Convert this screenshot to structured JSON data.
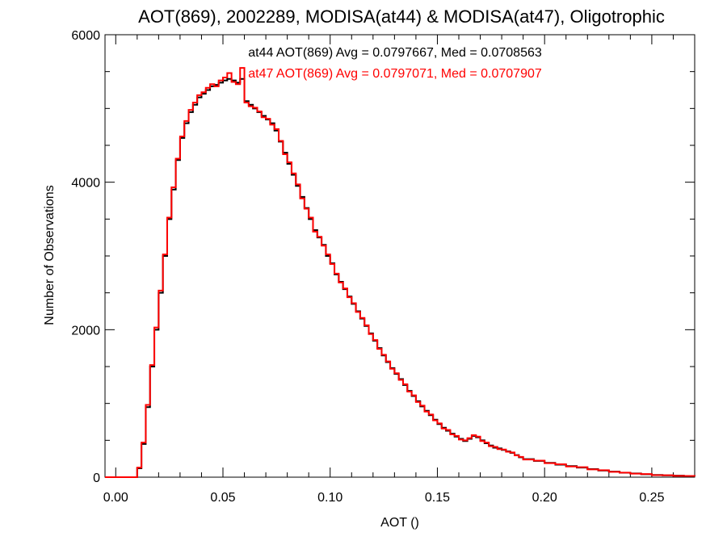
{
  "chart_data": {
    "type": "line",
    "title": "AOT(869), 2002289, MODISA(at44) & MODISA(at47), Oligotrophic",
    "xlabel": "AOT ()",
    "ylabel": "Number of Observations",
    "xlim": [
      -0.005,
      0.27
    ],
    "ylim": [
      0,
      6000
    ],
    "x_ticks": [
      0.0,
      0.05,
      0.1,
      0.15,
      0.2,
      0.25
    ],
    "x_tick_labels": [
      "0.00",
      "0.05",
      "0.10",
      "0.15",
      "0.20",
      "0.25"
    ],
    "y_ticks": [
      0,
      2000,
      4000,
      6000
    ],
    "y_tick_labels": [
      "0",
      "2000",
      "4000",
      "6000"
    ],
    "grid": false,
    "step": "histogram",
    "annotations": [
      {
        "text": "at44 AOT(869) Avg = 0.0797667, Med = 0.0708563",
        "color": "#000000"
      },
      {
        "text": "at47 AOT(869) Avg = 0.0797071, Med = 0.0707907",
        "color": "#ff0000"
      }
    ],
    "series": [
      {
        "color": "#000000",
        "x": [
          -0.005,
          0.0,
          0.005,
          0.008,
          0.01,
          0.012,
          0.014,
          0.016,
          0.018,
          0.02,
          0.022,
          0.024,
          0.026,
          0.028,
          0.03,
          0.032,
          0.034,
          0.036,
          0.038,
          0.04,
          0.042,
          0.044,
          0.046,
          0.048,
          0.05,
          0.052,
          0.054,
          0.056,
          0.058,
          0.06,
          0.062,
          0.064,
          0.066,
          0.068,
          0.07,
          0.072,
          0.074,
          0.076,
          0.078,
          0.08,
          0.082,
          0.084,
          0.086,
          0.088,
          0.09,
          0.092,
          0.094,
          0.096,
          0.098,
          0.1,
          0.102,
          0.104,
          0.106,
          0.108,
          0.11,
          0.112,
          0.114,
          0.116,
          0.118,
          0.12,
          0.122,
          0.124,
          0.126,
          0.128,
          0.13,
          0.132,
          0.134,
          0.136,
          0.138,
          0.14,
          0.142,
          0.144,
          0.146,
          0.148,
          0.15,
          0.152,
          0.154,
          0.156,
          0.158,
          0.16,
          0.162,
          0.164,
          0.166,
          0.168,
          0.17,
          0.172,
          0.174,
          0.176,
          0.178,
          0.18,
          0.182,
          0.184,
          0.186,
          0.188,
          0.19,
          0.195,
          0.2,
          0.205,
          0.21,
          0.215,
          0.22,
          0.225,
          0.23,
          0.235,
          0.24,
          0.245,
          0.25,
          0.255,
          0.26,
          0.265,
          0.27
        ],
        "values": [
          0,
          0,
          0,
          0,
          120,
          450,
          950,
          1500,
          2000,
          2500,
          3000,
          3500,
          3900,
          4300,
          4600,
          4800,
          4950,
          5050,
          5150,
          5200,
          5250,
          5300,
          5320,
          5350,
          5380,
          5400,
          5380,
          5350,
          5400,
          5100,
          5050,
          5000,
          4950,
          4900,
          4850,
          4800,
          4700,
          4550,
          4400,
          4250,
          4100,
          3950,
          3800,
          3650,
          3500,
          3350,
          3250,
          3150,
          3000,
          2900,
          2750,
          2650,
          2550,
          2450,
          2350,
          2250,
          2150,
          2050,
          1950,
          1850,
          1750,
          1650,
          1560,
          1480,
          1400,
          1330,
          1250,
          1170,
          1100,
          1030,
          960,
          900,
          840,
          780,
          720,
          670,
          630,
          590,
          550,
          520,
          490,
          520,
          560,
          540,
          500,
          460,
          430,
          400,
          390,
          370,
          350,
          330,
          300,
          270,
          245,
          220,
          195,
          170,
          150,
          130,
          110,
          90,
          75,
          60,
          50,
          40,
          30,
          25,
          20,
          15,
          12
        ]
      },
      {
        "color": "#ff0000",
        "x": [
          -0.005,
          0.0,
          0.005,
          0.008,
          0.01,
          0.012,
          0.014,
          0.016,
          0.018,
          0.02,
          0.022,
          0.024,
          0.026,
          0.028,
          0.03,
          0.032,
          0.034,
          0.036,
          0.038,
          0.04,
          0.042,
          0.044,
          0.046,
          0.048,
          0.05,
          0.052,
          0.054,
          0.056,
          0.058,
          0.06,
          0.062,
          0.064,
          0.066,
          0.068,
          0.07,
          0.072,
          0.074,
          0.076,
          0.078,
          0.08,
          0.082,
          0.084,
          0.086,
          0.088,
          0.09,
          0.092,
          0.094,
          0.096,
          0.098,
          0.1,
          0.102,
          0.104,
          0.106,
          0.108,
          0.11,
          0.112,
          0.114,
          0.116,
          0.118,
          0.12,
          0.122,
          0.124,
          0.126,
          0.128,
          0.13,
          0.132,
          0.134,
          0.136,
          0.138,
          0.14,
          0.142,
          0.144,
          0.146,
          0.148,
          0.15,
          0.152,
          0.154,
          0.156,
          0.158,
          0.16,
          0.162,
          0.164,
          0.166,
          0.168,
          0.17,
          0.172,
          0.174,
          0.176,
          0.178,
          0.18,
          0.182,
          0.184,
          0.186,
          0.188,
          0.19,
          0.195,
          0.2,
          0.205,
          0.21,
          0.215,
          0.22,
          0.225,
          0.23,
          0.235,
          0.24,
          0.245,
          0.25,
          0.255,
          0.26,
          0.265,
          0.27
        ],
        "values": [
          0,
          0,
          0,
          0,
          130,
          470,
          980,
          1520,
          2030,
          2530,
          3020,
          3520,
          3930,
          4320,
          4620,
          4830,
          4980,
          5080,
          5180,
          5220,
          5280,
          5330,
          5300,
          5380,
          5420,
          5480,
          5360,
          5330,
          5550,
          5080,
          5030,
          5010,
          4960,
          4880,
          4860,
          4780,
          4720,
          4560,
          4380,
          4270,
          4120,
          3970,
          3780,
          3640,
          3520,
          3330,
          3260,
          3140,
          3020,
          2890,
          2760,
          2640,
          2560,
          2440,
          2360,
          2240,
          2160,
          2060,
          1940,
          1860,
          1740,
          1660,
          1570,
          1470,
          1410,
          1320,
          1260,
          1160,
          1110,
          1020,
          970,
          890,
          850,
          770,
          730,
          660,
          640,
          580,
          560,
          510,
          500,
          530,
          570,
          550,
          490,
          470,
          420,
          410,
          380,
          375,
          345,
          335,
          295,
          275,
          240,
          225,
          190,
          175,
          145,
          135,
          105,
          95,
          72,
          62,
          48,
          42,
          28,
          26,
          18,
          16,
          11
        ]
      }
    ]
  }
}
